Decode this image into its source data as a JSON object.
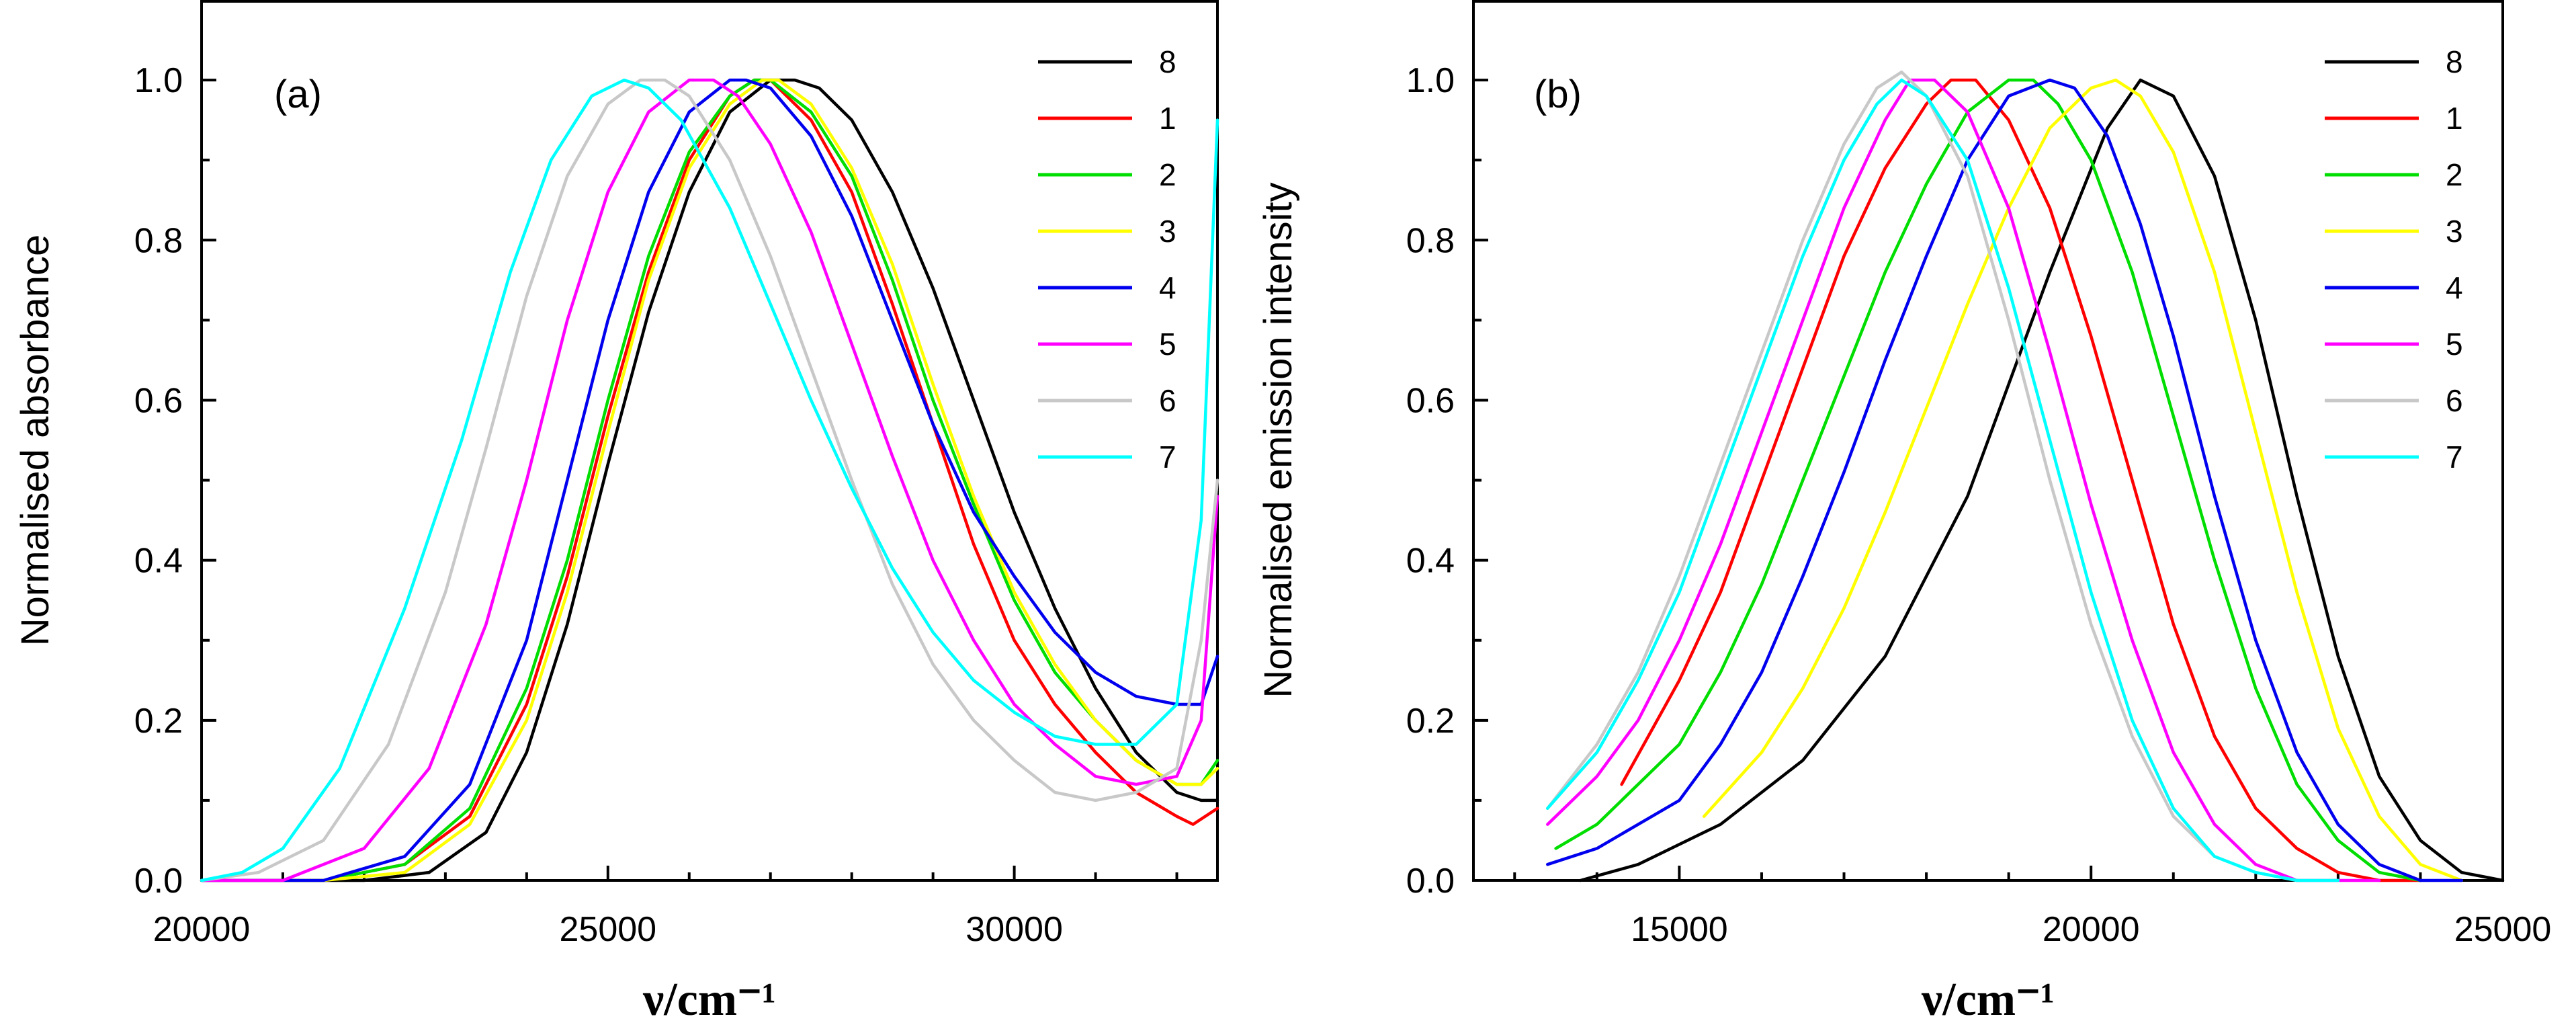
{
  "chart_data": [
    {
      "type": "line",
      "panel": "(a)",
      "ylabel": "Normalised absorbance",
      "xlabel": "ν/cm⁻¹",
      "xlim": [
        20000,
        32500
      ],
      "ylim": [
        0,
        1.1
      ],
      "xticks": [
        20000,
        25000,
        30000
      ],
      "yticks": [
        0.0,
        0.2,
        0.4,
        0.6,
        0.8,
        1.0
      ],
      "grid": false,
      "legend_position": "top-right",
      "series": [
        {
          "name": "8",
          "color": "#000000",
          "x": [
            20000,
            22000,
            22800,
            23500,
            24000,
            24500,
            25000,
            25500,
            26000,
            26500,
            27000,
            27300,
            27600,
            28000,
            28500,
            29000,
            29500,
            30000,
            30500,
            31000,
            31500,
            32000,
            32300,
            32500
          ],
          "y": [
            0.0,
            0.0,
            0.01,
            0.06,
            0.16,
            0.32,
            0.52,
            0.71,
            0.86,
            0.96,
            1.0,
            1.0,
            0.99,
            0.95,
            0.86,
            0.74,
            0.6,
            0.46,
            0.34,
            0.24,
            0.16,
            0.11,
            0.1,
            0.1
          ]
        },
        {
          "name": "1",
          "color": "#ff0000",
          "x": [
            20000,
            21500,
            22500,
            23300,
            24000,
            24500,
            25000,
            25500,
            26000,
            26500,
            26800,
            27000,
            27500,
            28000,
            28500,
            29000,
            29500,
            30000,
            30500,
            31000,
            31500,
            32000,
            32200,
            32500
          ],
          "y": [
            0.0,
            0.0,
            0.02,
            0.08,
            0.22,
            0.38,
            0.58,
            0.76,
            0.9,
            0.98,
            1.0,
            1.0,
            0.95,
            0.86,
            0.72,
            0.57,
            0.42,
            0.3,
            0.22,
            0.16,
            0.11,
            0.08,
            0.07,
            0.09
          ]
        },
        {
          "name": "2",
          "color": "#00dd00",
          "x": [
            20000,
            21500,
            22500,
            23300,
            24000,
            24500,
            25000,
            25500,
            26000,
            26500,
            26800,
            27000,
            27500,
            28000,
            28500,
            29000,
            29500,
            30000,
            30500,
            31000,
            31500,
            32000,
            32300,
            32500
          ],
          "y": [
            0.0,
            0.0,
            0.02,
            0.09,
            0.24,
            0.4,
            0.6,
            0.78,
            0.91,
            0.98,
            1.0,
            1.0,
            0.96,
            0.88,
            0.75,
            0.6,
            0.47,
            0.35,
            0.26,
            0.2,
            0.15,
            0.12,
            0.12,
            0.15
          ]
        },
        {
          "name": "3",
          "color": "#ffff00",
          "x": [
            20000,
            21500,
            22500,
            23300,
            24000,
            24500,
            25000,
            25500,
            26000,
            26500,
            26900,
            27100,
            27500,
            28000,
            28500,
            29000,
            29500,
            30000,
            30500,
            31000,
            31500,
            32000,
            32300,
            32500
          ],
          "y": [
            0.0,
            0.0,
            0.01,
            0.07,
            0.2,
            0.36,
            0.56,
            0.75,
            0.89,
            0.97,
            1.0,
            1.0,
            0.97,
            0.89,
            0.77,
            0.62,
            0.48,
            0.36,
            0.27,
            0.2,
            0.15,
            0.12,
            0.12,
            0.14
          ]
        },
        {
          "name": "4",
          "color": "#0000ee",
          "x": [
            20000,
            21500,
            22500,
            23300,
            24000,
            24500,
            25000,
            25500,
            26000,
            26500,
            26700,
            27000,
            27500,
            28000,
            28500,
            29000,
            29500,
            30000,
            30500,
            31000,
            31500,
            32000,
            32300,
            32500
          ],
          "y": [
            0.0,
            0.0,
            0.03,
            0.12,
            0.3,
            0.5,
            0.7,
            0.86,
            0.96,
            1.0,
            1.0,
            0.99,
            0.93,
            0.83,
            0.7,
            0.57,
            0.46,
            0.38,
            0.31,
            0.26,
            0.23,
            0.22,
            0.22,
            0.28
          ]
        },
        {
          "name": "5",
          "color": "#ff00ff",
          "x": [
            20000,
            21000,
            22000,
            22800,
            23500,
            24000,
            24500,
            25000,
            25500,
            26000,
            26300,
            26600,
            27000,
            27500,
            28000,
            28500,
            29000,
            29500,
            30000,
            30500,
            31000,
            31500,
            32000,
            32300,
            32500
          ],
          "y": [
            0.0,
            0.0,
            0.04,
            0.14,
            0.32,
            0.5,
            0.7,
            0.86,
            0.96,
            1.0,
            1.0,
            0.98,
            0.92,
            0.81,
            0.67,
            0.53,
            0.4,
            0.3,
            0.22,
            0.17,
            0.13,
            0.12,
            0.13,
            0.2,
            0.48
          ]
        },
        {
          "name": "6",
          "color": "#c8c8c8",
          "x": [
            20000,
            20700,
            21500,
            22300,
            23000,
            23500,
            24000,
            24500,
            25000,
            25400,
            25700,
            26000,
            26500,
            27000,
            27500,
            28000,
            28500,
            29000,
            29500,
            30000,
            30500,
            31000,
            31500,
            32000,
            32300,
            32500
          ],
          "y": [
            0.0,
            0.01,
            0.05,
            0.17,
            0.36,
            0.54,
            0.73,
            0.88,
            0.97,
            1.0,
            1.0,
            0.98,
            0.9,
            0.78,
            0.64,
            0.5,
            0.37,
            0.27,
            0.2,
            0.15,
            0.11,
            0.1,
            0.11,
            0.14,
            0.3,
            0.5
          ]
        },
        {
          "name": "7",
          "color": "#00ffff",
          "x": [
            20000,
            20500,
            21000,
            21700,
            22500,
            23200,
            23800,
            24300,
            24800,
            25200,
            25500,
            25900,
            26500,
            27000,
            27500,
            28000,
            28500,
            29000,
            29500,
            30000,
            30500,
            31000,
            31500,
            32000,
            32300,
            32500
          ],
          "y": [
            0.0,
            0.01,
            0.04,
            0.14,
            0.34,
            0.55,
            0.76,
            0.9,
            0.98,
            1.0,
            0.99,
            0.95,
            0.84,
            0.72,
            0.6,
            0.49,
            0.39,
            0.31,
            0.25,
            0.21,
            0.18,
            0.17,
            0.17,
            0.22,
            0.45,
            0.95
          ]
        }
      ]
    },
    {
      "type": "line",
      "panel": "(b)",
      "ylabel": "Normalised emission intensity",
      "xlabel": "ν/cm⁻¹",
      "xlim": [
        12500,
        25000
      ],
      "ylim": [
        0,
        1.1
      ],
      "xticks": [
        15000,
        20000,
        25000
      ],
      "yticks": [
        0.0,
        0.2,
        0.4,
        0.6,
        0.8,
        1.0
      ],
      "grid": false,
      "legend_position": "top-right",
      "series": [
        {
          "name": "8",
          "color": "#000000",
          "x": [
            13800,
            14500,
            15500,
            16500,
            17500,
            18500,
            19500,
            20200,
            20600,
            21000,
            21500,
            22000,
            22500,
            23000,
            23500,
            24000,
            24500,
            25000
          ],
          "y": [
            0.0,
            0.02,
            0.07,
            0.15,
            0.28,
            0.48,
            0.76,
            0.94,
            1.0,
            0.98,
            0.88,
            0.7,
            0.48,
            0.28,
            0.13,
            0.05,
            0.01,
            0.0
          ]
        },
        {
          "name": "1",
          "color": "#ff0000",
          "x": [
            14300,
            15000,
            15500,
            16000,
            16500,
            17000,
            17500,
            18000,
            18300,
            18600,
            19000,
            19500,
            20000,
            20500,
            21000,
            21500,
            22000,
            22500,
            23000,
            23500,
            24000
          ],
          "y": [
            0.12,
            0.25,
            0.36,
            0.5,
            0.64,
            0.78,
            0.89,
            0.97,
            1.0,
            1.0,
            0.95,
            0.84,
            0.68,
            0.5,
            0.32,
            0.18,
            0.09,
            0.04,
            0.01,
            0.0,
            0.0
          ]
        },
        {
          "name": "2",
          "color": "#00dd00",
          "x": [
            13500,
            14000,
            15000,
            15500,
            16000,
            16500,
            17000,
            17500,
            18000,
            18500,
            19000,
            19300,
            19600,
            20000,
            20500,
            21000,
            21500,
            22000,
            22500,
            23000,
            23500,
            24000
          ],
          "y": [
            0.04,
            0.07,
            0.17,
            0.26,
            0.37,
            0.5,
            0.63,
            0.76,
            0.87,
            0.96,
            1.0,
            1.0,
            0.97,
            0.9,
            0.76,
            0.58,
            0.4,
            0.24,
            0.12,
            0.05,
            0.01,
            0.0
          ]
        },
        {
          "name": "3",
          "color": "#ffff00",
          "x": [
            15300,
            16000,
            16500,
            17000,
            17500,
            18000,
            18500,
            19000,
            19500,
            20000,
            20300,
            20600,
            21000,
            21500,
            22000,
            22500,
            23000,
            23500,
            24000,
            24500
          ],
          "y": [
            0.08,
            0.16,
            0.24,
            0.34,
            0.46,
            0.59,
            0.72,
            0.84,
            0.94,
            0.99,
            1.0,
            0.98,
            0.91,
            0.76,
            0.56,
            0.36,
            0.19,
            0.08,
            0.02,
            0.0
          ]
        },
        {
          "name": "4",
          "color": "#0000ee",
          "x": [
            13400,
            14000,
            15000,
            15500,
            16000,
            16500,
            17000,
            17500,
            18000,
            18500,
            19000,
            19500,
            19800,
            20200,
            20600,
            21000,
            21500,
            22000,
            22500,
            23000,
            23500,
            24000,
            24500
          ],
          "y": [
            0.02,
            0.04,
            0.1,
            0.17,
            0.26,
            0.38,
            0.51,
            0.65,
            0.78,
            0.9,
            0.98,
            1.0,
            0.99,
            0.93,
            0.82,
            0.68,
            0.48,
            0.3,
            0.16,
            0.07,
            0.02,
            0.0,
            0.0
          ]
        },
        {
          "name": "5",
          "color": "#ff00ff",
          "x": [
            13400,
            14000,
            14500,
            15000,
            15500,
            16000,
            16500,
            17000,
            17500,
            17800,
            18100,
            18500,
            19000,
            19500,
            20000,
            20500,
            21000,
            21500,
            22000,
            22500,
            23000,
            23500
          ],
          "y": [
            0.07,
            0.13,
            0.2,
            0.3,
            0.42,
            0.56,
            0.7,
            0.84,
            0.95,
            1.0,
            1.0,
            0.96,
            0.84,
            0.66,
            0.47,
            0.3,
            0.16,
            0.07,
            0.02,
            0.0,
            0.0,
            0.0
          ]
        },
        {
          "name": "6",
          "color": "#c8c8c8",
          "x": [
            13400,
            14000,
            14500,
            15000,
            15500,
            16000,
            16500,
            17000,
            17400,
            17700,
            18000,
            18500,
            19000,
            19500,
            20000,
            20500,
            21000,
            21500,
            22000,
            22500,
            23000
          ],
          "y": [
            0.09,
            0.17,
            0.26,
            0.38,
            0.52,
            0.66,
            0.8,
            0.92,
            0.99,
            1.01,
            0.98,
            0.88,
            0.7,
            0.5,
            0.32,
            0.18,
            0.08,
            0.03,
            0.01,
            0.0,
            0.0
          ]
        },
        {
          "name": "7",
          "color": "#00ffff",
          "x": [
            13400,
            14000,
            14500,
            15000,
            15500,
            16000,
            16500,
            17000,
            17400,
            17700,
            18000,
            18500,
            19000,
            19500,
            20000,
            20500,
            21000,
            21500,
            22000,
            22500,
            23000
          ],
          "y": [
            0.09,
            0.16,
            0.25,
            0.36,
            0.5,
            0.64,
            0.78,
            0.9,
            0.97,
            1.0,
            0.98,
            0.9,
            0.74,
            0.55,
            0.36,
            0.2,
            0.09,
            0.03,
            0.01,
            0.0,
            0.0
          ]
        }
      ]
    }
  ]
}
